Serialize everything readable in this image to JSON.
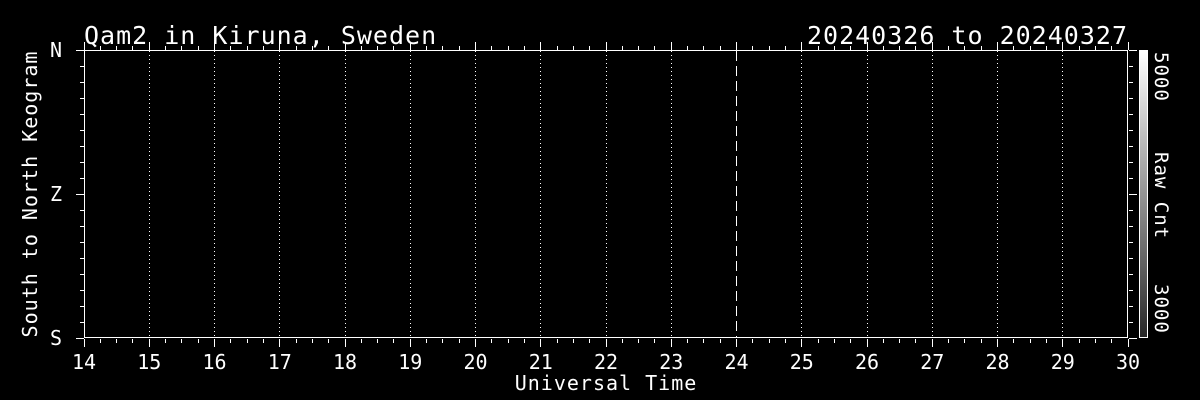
{
  "titles": {
    "left": "Qam2 in Kiruna, Sweden",
    "right": "20240326 to 20240327"
  },
  "x_axis": {
    "label": "Universal Time",
    "tick_labels": [
      "14",
      "15",
      "16",
      "17",
      "18",
      "19",
      "20",
      "21",
      "22",
      "23",
      "24",
      "25",
      "26",
      "27",
      "28",
      "29",
      "30"
    ]
  },
  "y_axis": {
    "label": "South to North Keogram",
    "tick_labels": [
      "N",
      "Z",
      "S"
    ]
  },
  "colorbar": {
    "label": "Raw Cnt",
    "top_value": "5000",
    "bottom_value": "3000"
  },
  "colors": {
    "background": "#000000",
    "foreground": "#ffffff",
    "colorbar_top": "#ffffff",
    "colorbar_bottom": "#262626"
  },
  "chart_data": {
    "type": "heatmap",
    "subtype": "keogram",
    "title": "Qam2 in Kiruna, Sweden",
    "subtitle": "20240326 to 20240327",
    "xlabel": "Universal Time",
    "ylabel": "South to North Keogram",
    "x_range": [
      14,
      30
    ],
    "x_major_tick_interval": 1,
    "x_minor_ticks_per_major": 4,
    "y_categories_top_to_bottom": [
      "N",
      "Z",
      "S"
    ],
    "y_minor_ticks_per_major": 9,
    "values": [],
    "values_note": "no image data visible; plot interior entirely black",
    "midnight_line_x": 24,
    "midnight_line_style": "dashed",
    "grid": "dotted vertical line at every hour",
    "legend_position": "none",
    "colorbar": {
      "label": "Raw Cnt",
      "min": 3000,
      "max": 5000,
      "colormap": "grayscale",
      "position": "right"
    }
  }
}
